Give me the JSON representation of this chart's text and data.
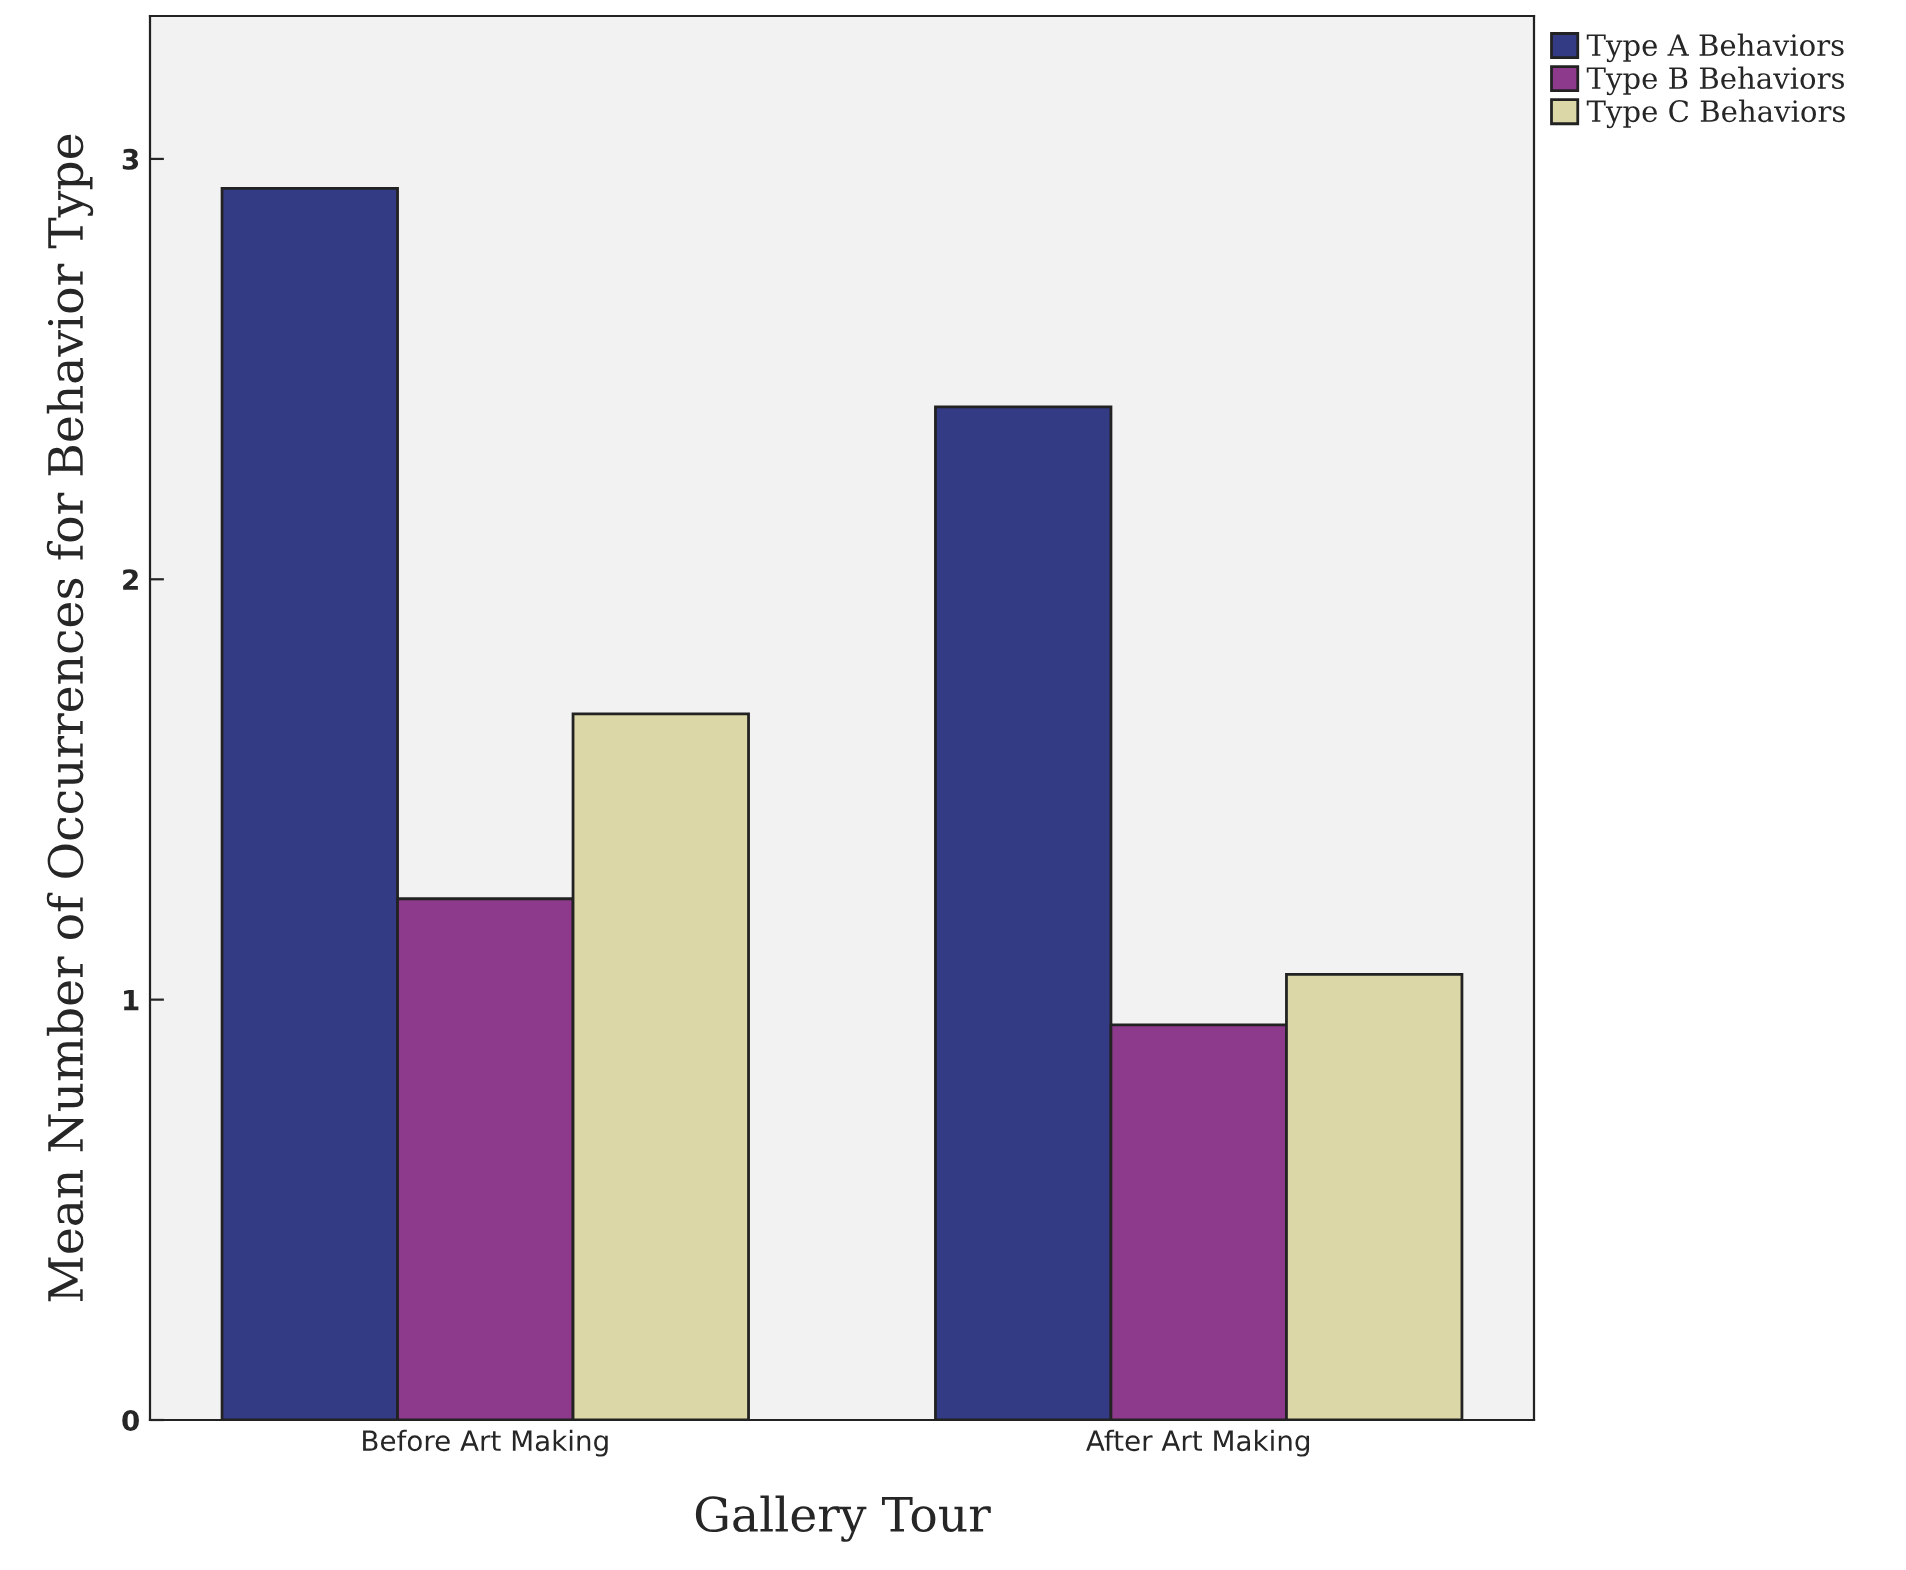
{
  "chart_data": {
    "type": "bar",
    "xlabel": "Gallery Tour",
    "ylabel": "Mean Number of Occurrences for Behavior Type",
    "categories": [
      "Before Art Making",
      "After Art Making"
    ],
    "series": [
      {
        "name": "Type A Behaviors",
        "color": "#333b85",
        "values": [
          2.93,
          2.41
        ]
      },
      {
        "name": "Type B Behaviors",
        "color": "#8e3a8c",
        "values": [
          1.24,
          0.94
        ]
      },
      {
        "name": "Type C Behaviors",
        "color": "#dbd7a7",
        "values": [
          1.68,
          1.06
        ]
      }
    ],
    "ylim": [
      0,
      3.34
    ],
    "yticks": [
      0,
      1,
      2,
      3
    ],
    "grid": false,
    "legend": "top right"
  }
}
